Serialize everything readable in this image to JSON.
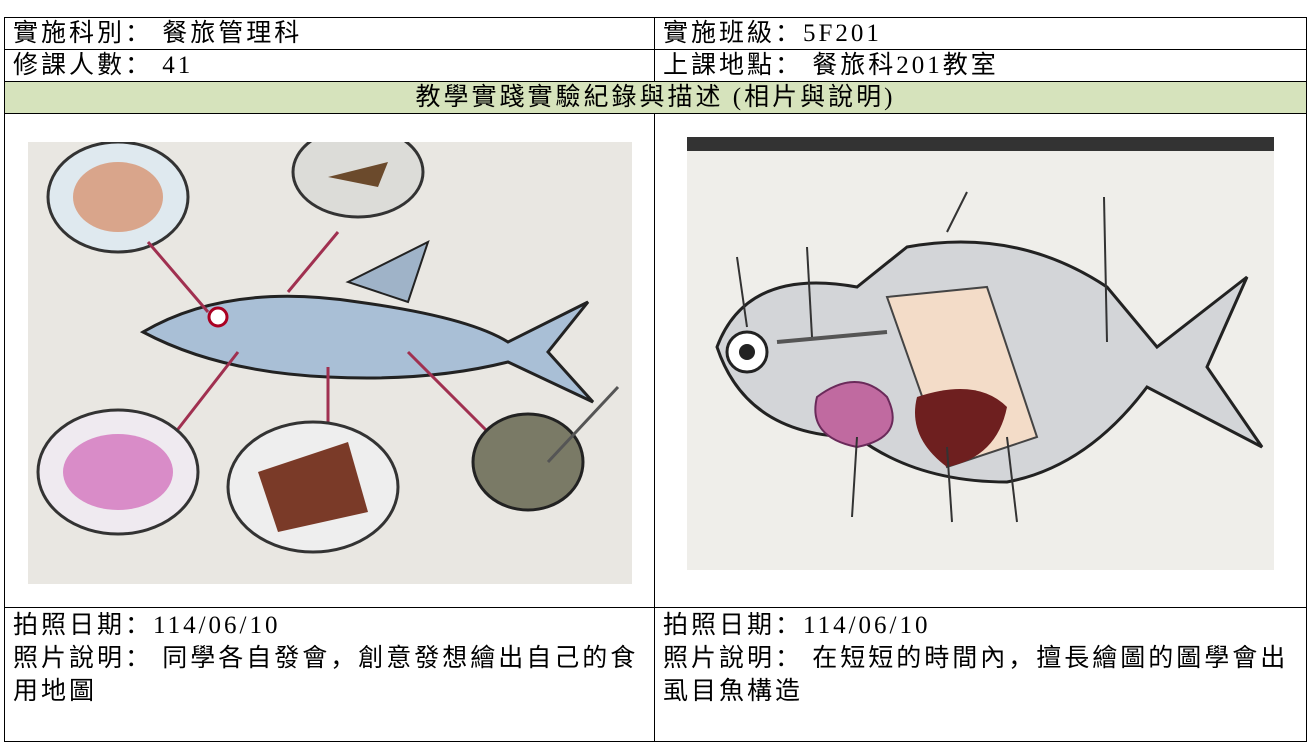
{
  "table": {
    "rows": [
      [
        "實施科別： 餐旅管理科",
        "實施班級：5F201"
      ],
      [
        "修課人數： 41",
        "上課地點： 餐旅科201教室"
      ],
      [
        "教學實踐實驗紀錄與描述 (相片與說明)"
      ],
      [
        {
          "date": "拍照日期：114/06/10",
          "caption": "照片說明： 同學各自發會，創意發想繪出自己的食用地圖"
        },
        {
          "date": "拍照日期：114/06/10",
          "caption": "照片說明： 在短短的時間內，擅長繪圖的圖學會出虱目魚構造"
        }
      ]
    ]
  }
}
